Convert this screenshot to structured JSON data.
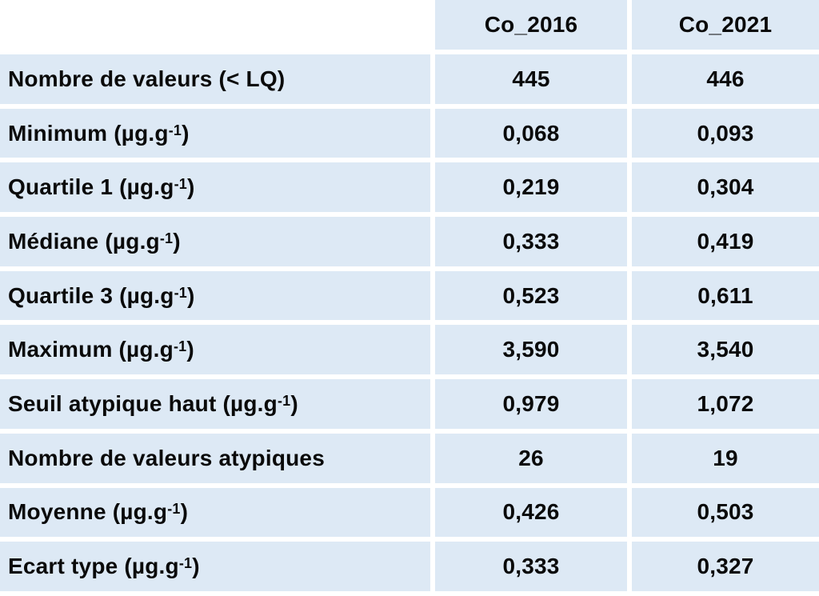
{
  "table": {
    "columns": [
      "Co_2016",
      "Co_2021"
    ],
    "rows": [
      {
        "label": "Nombre de valeurs (< LQ)",
        "unit_sup": "",
        "suffix": "",
        "values": [
          "445",
          "446"
        ]
      },
      {
        "label": "Minimum (µg.g",
        "unit_sup": "-1",
        "suffix": ")",
        "values": [
          "0,068",
          "0,093"
        ]
      },
      {
        "label": "Quartile 1 (µg.g",
        "unit_sup": "-1",
        "suffix": ")",
        "values": [
          "0,219",
          "0,304"
        ]
      },
      {
        "label": "Médiane (µg.g",
        "unit_sup": "-1",
        "suffix": ")",
        "values": [
          "0,333",
          "0,419"
        ]
      },
      {
        "label": "Quartile 3 (µg.g",
        "unit_sup": "-1",
        "suffix": ")",
        "values": [
          "0,523",
          "0,611"
        ]
      },
      {
        "label": "Maximum (µg.g",
        "unit_sup": "-1",
        "suffix": ")",
        "values": [
          "3,590",
          "3,540"
        ]
      },
      {
        "label": "Seuil atypique haut (µg.g",
        "unit_sup": "-1",
        "suffix": ")",
        "values": [
          "0,979",
          "1,072"
        ]
      },
      {
        "label": "Nombre de valeurs atypiques",
        "unit_sup": "",
        "suffix": "",
        "values": [
          "26",
          "19"
        ]
      },
      {
        "label": "Moyenne (µg.g",
        "unit_sup": "-1",
        "suffix": ")",
        "values": [
          "0,426",
          "0,503"
        ]
      },
      {
        "label": "Ecart type (µg.g",
        "unit_sup": "-1",
        "suffix": ")",
        "values": [
          "0,333",
          "0,327"
        ]
      }
    ]
  },
  "colors": {
    "cell_background": "#dde9f5",
    "text": "#0a0a0a",
    "separator": "#ffffff"
  }
}
